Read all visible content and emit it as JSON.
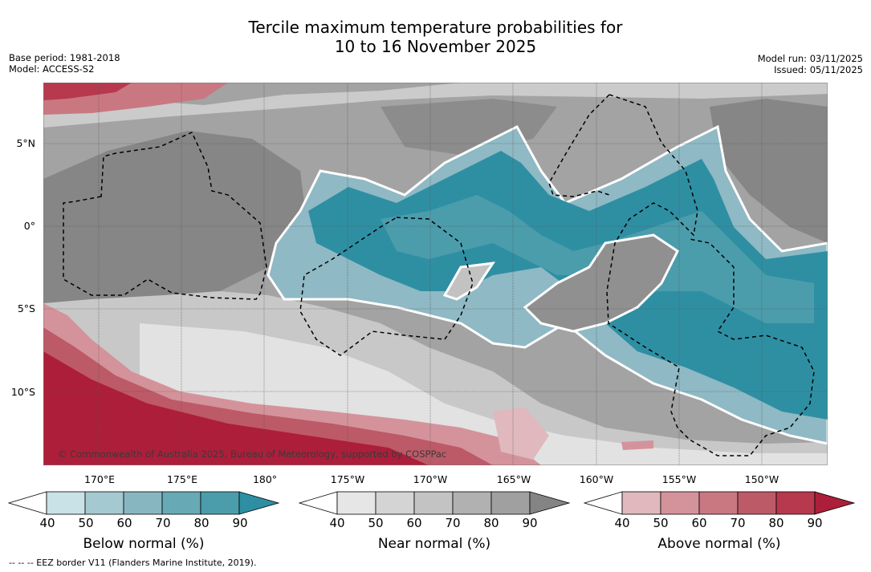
{
  "title_line1": "Tercile maximum temperature probabilities for",
  "title_line2": "10 to 16 November 2025",
  "meta_left": {
    "base_period": "Base period: 1981-2018",
    "model": "Model: ACCESS-S2"
  },
  "meta_right": {
    "model_run": "Model run: 03/11/2025",
    "issued": "Issued: 05/11/2025"
  },
  "lat_labels": [
    "5°N",
    "0°",
    "5°S",
    "10°S"
  ],
  "lon_labels": [
    "170°E",
    "175°E",
    "180°",
    "175°W",
    "170°W",
    "165°W",
    "160°W",
    "155°W",
    "150°W"
  ],
  "copyright": "© Commonwealth of Australia 2025, Bureau of Meteorology, supported by COSPPac",
  "colorbars": [
    {
      "label": "Below normal (%)",
      "ticks": [
        "40",
        "50",
        "60",
        "70",
        "80",
        "90"
      ],
      "colors": [
        "#c9e2e8",
        "#a5c9d0",
        "#87b6c1",
        "#67aab6",
        "#4b9dac",
        "#2e8fa3"
      ],
      "low": "#ffffff",
      "high": "#2e8fa3"
    },
    {
      "label": "Near normal (%)",
      "ticks": [
        "40",
        "50",
        "60",
        "70",
        "80",
        "90"
      ],
      "colors": [
        "#e6e6e6",
        "#d4d4d4",
        "#c3c3c3",
        "#b1b1b1",
        "#a0a0a0",
        "#848484"
      ],
      "low": "#ffffff",
      "high": "#848484"
    },
    {
      "label": "Above normal (%)",
      "ticks": [
        "40",
        "50",
        "60",
        "70",
        "80",
        "90"
      ],
      "colors": [
        "#e0b8bd",
        "#d4939b",
        "#c97882",
        "#bd5a67",
        "#b7394d",
        "#ad1e3a"
      ],
      "low": "#ffffff",
      "high": "#ad1e3a"
    }
  ],
  "footer": "--  --  -- EEZ border V11 (Flanders Marine Institute, 2019)."
}
